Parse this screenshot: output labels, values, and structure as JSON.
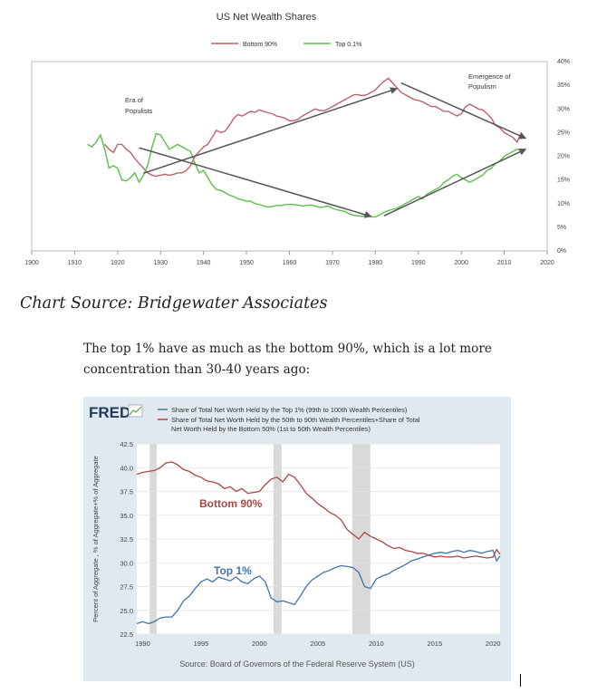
{
  "chart_data": [
    {
      "type": "line",
      "title": "US Net Wealth Shares",
      "legend": [
        "Bottom 90%",
        "Top 0.1%"
      ],
      "colors": {
        "bottom": "#c0606b",
        "top": "#5cbf4a",
        "arrow": "#555555"
      },
      "xlim": [
        1900,
        2020
      ],
      "ylim": [
        0,
        40
      ],
      "x_ticks": [
        "1900",
        "1910",
        "1920",
        "1930",
        "1940",
        "1950",
        "1960",
        "1970",
        "1980",
        "1990",
        "2000",
        "2010",
        "2020"
      ],
      "y_ticks": [
        "0%",
        "5%",
        "10%",
        "15%",
        "20%",
        "25%",
        "30%",
        "35%",
        "40%"
      ],
      "annotations": {
        "populists_era": "Era of Populists",
        "populism_emergence": "Emergence of Populism"
      },
      "series": [
        {
          "name": "Bottom 90%",
          "x": [
            1917,
            1918,
            1919,
            1920,
            1921,
            1922,
            1923,
            1924,
            1925,
            1926,
            1927,
            1928,
            1929,
            1930,
            1931,
            1932,
            1933,
            1934,
            1935,
            1936,
            1937,
            1938,
            1939,
            1940,
            1941,
            1942,
            1943,
            1944,
            1945,
            1946,
            1947,
            1948,
            1949,
            1950,
            1951,
            1952,
            1953,
            1954,
            1955,
            1956,
            1957,
            1958,
            1959,
            1960,
            1961,
            1962,
            1963,
            1964,
            1965,
            1966,
            1967,
            1968,
            1969,
            1970,
            1971,
            1972,
            1973,
            1974,
            1975,
            1976,
            1977,
            1978,
            1979,
            1980,
            1981,
            1982,
            1983,
            1984,
            1985,
            1986,
            1987,
            1988,
            1989,
            1990,
            1991,
            1992,
            1993,
            1994,
            1995,
            1996,
            1997,
            1998,
            1999,
            2000,
            2001,
            2002,
            2003,
            2004,
            2005,
            2006,
            2007,
            2008,
            2009,
            2010,
            2011,
            2012,
            2013,
            2014
          ],
          "y": [
            22.5,
            21.5,
            20.8,
            22.5,
            22.5,
            21.5,
            20.8,
            19.5,
            18.5,
            17.5,
            16.5,
            16,
            15.8,
            16,
            16.2,
            16,
            16.2,
            16.5,
            16.5,
            17,
            18,
            20,
            21,
            22,
            22.5,
            24,
            25.5,
            25,
            25.3,
            26.5,
            28,
            28.8,
            28.5,
            29,
            29.5,
            29.3,
            29.8,
            29.5,
            29.2,
            29,
            28.5,
            28.3,
            28,
            27.5,
            27.5,
            27.8,
            28.5,
            29,
            29.5,
            30,
            29.7,
            29.6,
            30,
            30.5,
            31,
            31.5,
            32,
            32.5,
            33,
            33,
            32.8,
            33,
            33.5,
            34,
            35,
            35.8,
            36.5,
            35.5,
            34.5,
            33.5,
            33,
            32.5,
            32,
            31.8,
            31.5,
            31,
            30.5,
            30.5,
            30,
            29.5,
            29.5,
            29,
            28.5,
            29,
            30.5,
            31,
            30.5,
            30,
            29.8,
            29,
            28,
            26.5,
            26,
            25,
            24.5,
            24,
            23,
            25
          ]
        },
        {
          "name": "Top 0.1%",
          "x": [
            1913,
            1914,
            1915,
            1916,
            1917,
            1918,
            1919,
            1920,
            1921,
            1922,
            1923,
            1924,
            1925,
            1926,
            1927,
            1928,
            1929,
            1930,
            1931,
            1932,
            1933,
            1934,
            1935,
            1936,
            1937,
            1938,
            1939,
            1940,
            1941,
            1942,
            1943,
            1944,
            1945,
            1946,
            1947,
            1948,
            1949,
            1950,
            1951,
            1952,
            1953,
            1954,
            1955,
            1956,
            1957,
            1958,
            1959,
            1960,
            1961,
            1962,
            1963,
            1964,
            1965,
            1966,
            1967,
            1968,
            1969,
            1970,
            1971,
            1972,
            1973,
            1974,
            1975,
            1976,
            1977,
            1978,
            1979,
            1980,
            1981,
            1982,
            1983,
            1984,
            1985,
            1986,
            1987,
            1988,
            1989,
            1990,
            1991,
            1992,
            1993,
            1994,
            1995,
            1996,
            1997,
            1998,
            1999,
            2000,
            2001,
            2002,
            2003,
            2004,
            2005,
            2006,
            2007,
            2008,
            2009,
            2010,
            2011,
            2012,
            2013,
            2014
          ],
          "y": [
            22.5,
            22,
            23,
            24.5,
            21.5,
            17.5,
            18,
            17.5,
            15,
            14.8,
            15.5,
            16.5,
            14.5,
            16,
            18,
            22,
            24.8,
            24.5,
            23,
            21.5,
            22,
            22.5,
            22,
            21.5,
            21,
            18.5,
            16.5,
            17,
            15.5,
            14,
            13,
            12.8,
            12.3,
            11.8,
            11.5,
            11,
            10.8,
            10.5,
            10.5,
            10,
            9.8,
            9.5,
            9.3,
            9.4,
            9.6,
            9.6,
            9.8,
            9.8,
            9.8,
            9.7,
            9.5,
            9.6,
            9.7,
            9.5,
            9.2,
            9.3,
            9.5,
            9,
            8.7,
            8.5,
            8.3,
            7.8,
            7.5,
            7.4,
            7.3,
            7.5,
            7.2,
            7.2,
            7.6,
            8.2,
            8.5,
            8.8,
            9,
            9.5,
            10,
            10.5,
            11,
            11.5,
            11,
            12,
            12.5,
            13,
            13.5,
            14.5,
            15,
            15.8,
            16.2,
            15.5,
            15,
            14.5,
            15,
            15.5,
            16,
            17,
            17.5,
            18.5,
            19,
            20,
            20.5,
            21,
            21.5,
            21.3
          ]
        }
      ]
    },
    {
      "type": "line",
      "brand": "FRED",
      "legend": [
        "Share of Total Net Worth Held by the Top 1% (99th to 100th Wealth Percentiles)",
        "Share of Total Net Worth Held by the 50th to 90th Wealth Percentiles+Share of Total Net Worth Held by the Bottom 50% (1st to 50th Wealth Percentiles)"
      ],
      "ylabel": "Percent of Aggregate , % of Aggregate+% of Aggregate",
      "source": "Source: Board of Governors of the Federal Reserve System (US)",
      "label_bottom": "Bottom 90%",
      "label_top": "Top 1%",
      "colors": {
        "top": "#4572a7",
        "bottom": "#aa4643",
        "recession": "#d9d9d9",
        "bg": "#e1e9f0"
      },
      "xlim": [
        1989.5,
        2020.6
      ],
      "ylim": [
        22.5,
        42.5
      ],
      "x_ticks": [
        "1990",
        "1995",
        "2000",
        "2005",
        "2010",
        "2015",
        "2020"
      ],
      "y_ticks": [
        "22.5",
        "25.0",
        "27.5",
        "30.0",
        "32.5",
        "35.0",
        "37.5",
        "40.0",
        "42.5"
      ],
      "recessions": [
        [
          1990.6,
          1991.2
        ],
        [
          2001.2,
          2001.9
        ],
        [
          2007.95,
          2009.5
        ]
      ],
      "series": [
        {
          "name": "Top 1%",
          "x": [
            1989.5,
            1990,
            1990.5,
            1991,
            1991.5,
            1992,
            1992.5,
            1993,
            1993.5,
            1994,
            1994.5,
            1995,
            1995.5,
            1996,
            1996.5,
            1997,
            1997.5,
            1998,
            1998.5,
            1999,
            1999.5,
            2000,
            2000.5,
            2001,
            2001.5,
            2002,
            2002.5,
            2003,
            2003.5,
            2004,
            2004.5,
            2005,
            2005.5,
            2006,
            2006.5,
            2007,
            2007.5,
            2008,
            2008.5,
            2009,
            2009.5,
            2010,
            2010.5,
            2011,
            2011.5,
            2012,
            2012.5,
            2013,
            2013.5,
            2014,
            2014.5,
            2015,
            2015.5,
            2016,
            2016.5,
            2017,
            2017.5,
            2018,
            2018.5,
            2019,
            2019.5,
            2020,
            2020.3,
            2020.6
          ],
          "y": [
            23.6,
            23.8,
            23.6,
            23.8,
            24.2,
            24.3,
            24.3,
            25,
            26,
            26.5,
            27.3,
            28,
            28.3,
            28,
            28.5,
            28.3,
            28.1,
            28.5,
            28,
            27.8,
            28.3,
            28.6,
            28,
            26.3,
            25.9,
            26,
            25.8,
            25.6,
            26.5,
            27.5,
            28.2,
            28.6,
            29,
            29.2,
            29.5,
            29.7,
            29.6,
            29.5,
            29,
            27.5,
            27.3,
            28.3,
            28.6,
            28.8,
            29.2,
            29.5,
            29.8,
            30.2,
            30.4,
            30.6,
            30.8,
            31,
            31.1,
            31,
            31.2,
            31.3,
            31.1,
            31.3,
            31.2,
            31,
            31.2,
            31.3,
            30.2,
            30.7
          ]
        },
        {
          "name": "Bottom 90%",
          "x": [
            1989.5,
            1990,
            1990.5,
            1991,
            1991.5,
            1992,
            1992.5,
            1993,
            1993.5,
            1994,
            1994.5,
            1995,
            1995.5,
            1996,
            1996.5,
            1997,
            1997.5,
            1998,
            1998.5,
            1999,
            1999.5,
            2000,
            2000.5,
            2001,
            2001.5,
            2002,
            2002.5,
            2003,
            2003.5,
            2004,
            2004.5,
            2005,
            2005.5,
            2006,
            2006.5,
            2007,
            2007.5,
            2008,
            2008.5,
            2009,
            2009.5,
            2010,
            2010.5,
            2011,
            2011.5,
            2012,
            2012.5,
            2013,
            2013.5,
            2014,
            2014.5,
            2015,
            2015.5,
            2016,
            2016.5,
            2017,
            2017.5,
            2018,
            2018.5,
            2019,
            2019.5,
            2020,
            2020.3,
            2020.6
          ],
          "y": [
            39.3,
            39.5,
            39.6,
            39.7,
            40,
            40.5,
            40.6,
            40.3,
            39.8,
            39.6,
            39.2,
            39,
            38.6,
            38.5,
            38.3,
            37.8,
            38,
            37.5,
            37.8,
            37.3,
            37.4,
            37.5,
            38.2,
            38.8,
            39,
            38.5,
            39.3,
            39,
            38.2,
            37.3,
            36.8,
            36.2,
            35.8,
            35.3,
            35,
            34.5,
            33.5,
            33,
            32.5,
            33.2,
            32.8,
            32.5,
            32.2,
            31.8,
            31.5,
            31.6,
            31.3,
            31.2,
            31,
            31,
            30.8,
            30.6,
            30.7,
            30.6,
            30.6,
            30.7,
            30.5,
            30.6,
            30.7,
            30.6,
            30.5,
            30.6,
            31.4,
            30.9
          ]
        }
      ]
    }
  ],
  "text": {
    "source": "Chart Source: Bridgewater Associates",
    "paragraph": "The top 1% have as much as the bottom 90%, which is a lot more concentration than 30-40 years ago:"
  }
}
